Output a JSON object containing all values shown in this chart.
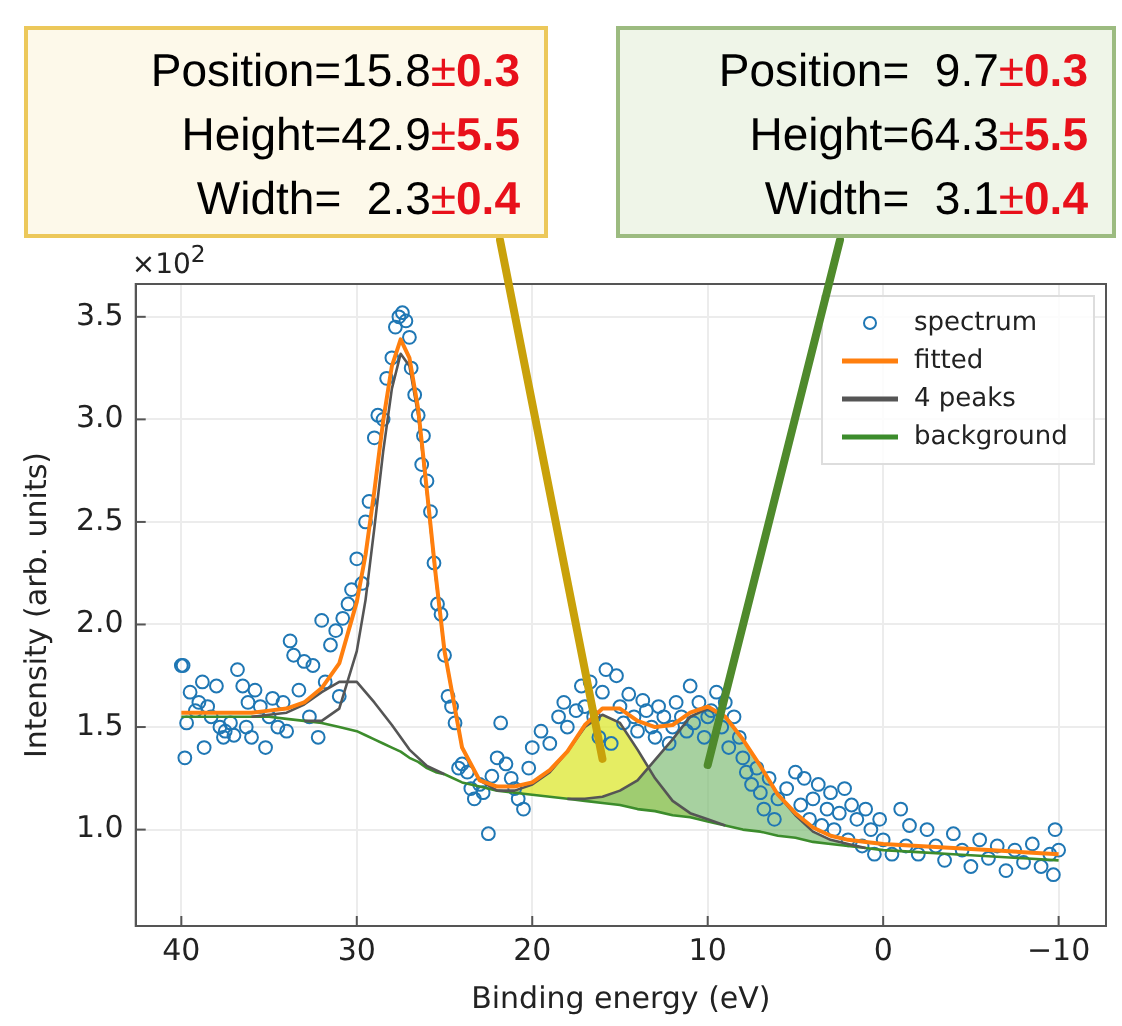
{
  "chart_data": {
    "type": "line",
    "xlabel": "Binding energy (eV)",
    "ylabel": "Intensity (arb. units)",
    "xlim": [
      42.6,
      -12.7
    ],
    "ylim": [
      0.53,
      3.66
    ],
    "xticks": [
      40,
      30,
      20,
      10,
      0,
      {
        "value": -10,
        "label": "−10"
      }
    ],
    "yticks": [
      {
        "value": 1,
        "label": "1.0"
      },
      {
        "value": 1.5,
        "label": "1.5"
      },
      {
        "value": 2,
        "label": "2.0"
      },
      {
        "value": 2.5,
        "label": "2.5"
      },
      {
        "value": 3,
        "label": "3.0"
      },
      {
        "value": 3.5,
        "label": "3.5"
      }
    ],
    "grid": true,
    "legend": "top right",
    "annotations": [
      "×10$^{2}$",
      "Position=15.8±0.3",
      "Height=42.9±5.5",
      "Width=  2.3±0.4",
      "Position=  9.7±0.3",
      "Height=64.3±5.5",
      "Width=  3.1±0.4"
    ],
    "series": [
      {
        "name": "spectrum",
        "type": "scatter",
        "marker": "circle",
        "color": "#1f77b4",
        "x": [
          40,
          39.9,
          39.8,
          39.7,
          39.5,
          39.2,
          39,
          38.8,
          38.7,
          38.5,
          38.3,
          38,
          37.8,
          37.6,
          37.5,
          37.2,
          37,
          36.8,
          36.5,
          36.3,
          36.2,
          36,
          35.8,
          35.5,
          35.2,
          35,
          34.8,
          34.5,
          34.2,
          34,
          33.8,
          33.6,
          33.3,
          33,
          32.7,
          32.5,
          32.2,
          32,
          31.8,
          31.5,
          31.2,
          31,
          30.8,
          30.5,
          30.3,
          30,
          29.7,
          29.5,
          29.3,
          29,
          28.8,
          28.5,
          28.3,
          28,
          27.8,
          27.6,
          27.4,
          27.2,
          27,
          26.9,
          26.7,
          26.5,
          26.3,
          26.2,
          26,
          25.8,
          25.6,
          25.4,
          25.2,
          25,
          24.8,
          24.6,
          24.4,
          24.2,
          24,
          23.7,
          23.5,
          23.3,
          23,
          22.8,
          22.5,
          22.3,
          22,
          21.8,
          21.5,
          21.2,
          21,
          20.8,
          20.5,
          20.2,
          20,
          19.5,
          19,
          18.5,
          18.2,
          18,
          17.5,
          17.2,
          17,
          16.7,
          16.5,
          16.2,
          16,
          15.8,
          15.5,
          15.2,
          15,
          14.8,
          14.5,
          14.2,
          14,
          13.7,
          13.5,
          13.2,
          13,
          12.8,
          12.5,
          12.2,
          12,
          11.8,
          11.5,
          11.2,
          11,
          10.8,
          10.5,
          10.2,
          10,
          9.8,
          9.5,
          9.2,
          9,
          8.8,
          8.5,
          8.2,
          8,
          7.8,
          7.5,
          7.2,
          7,
          6.8,
          6.5,
          6.2,
          6,
          5.5,
          5,
          4.7,
          4.5,
          4.2,
          4,
          3.7,
          3.5,
          3.2,
          3,
          2.8,
          2.5,
          2.2,
          2,
          1.8,
          1.5,
          1.2,
          1,
          0.7,
          0.5,
          0.2,
          0,
          -0.5,
          -1,
          -1.3,
          -1.5,
          -2,
          -2.5,
          -3,
          -3.5,
          -4,
          -4.5,
          -5,
          -5.5,
          -6,
          -6.5,
          -7,
          -7.5,
          -8,
          -8.5,
          -9,
          -9.5,
          -9.7,
          -9.8,
          -10
        ],
        "values": [
          1.8,
          1.8,
          1.35,
          1.52,
          1.67,
          1.58,
          1.62,
          1.72,
          1.4,
          1.6,
          1.55,
          1.7,
          1.5,
          1.45,
          1.48,
          1.52,
          1.46,
          1.78,
          1.7,
          1.5,
          1.62,
          1.45,
          1.68,
          1.6,
          1.4,
          1.55,
          1.64,
          1.5,
          1.62,
          1.48,
          1.92,
          1.85,
          1.68,
          1.82,
          1.55,
          1.8,
          1.45,
          2.02,
          1.72,
          1.9,
          1.97,
          1.65,
          2.03,
          2.1,
          2.17,
          2.32,
          2.2,
          2.5,
          2.6,
          2.91,
          3.02,
          3.0,
          3.2,
          3.3,
          3.45,
          3.5,
          3.52,
          3.48,
          3.4,
          3.25,
          3.12,
          3.02,
          2.78,
          2.92,
          2.7,
          2.55,
          2.3,
          2.1,
          2.05,
          1.85,
          1.65,
          1.6,
          1.52,
          1.3,
          1.32,
          1.28,
          1.2,
          1.15,
          1.22,
          1.18,
          0.98,
          1.26,
          1.35,
          1.52,
          1.32,
          1.25,
          1.2,
          1.15,
          1.1,
          1.3,
          1.4,
          1.48,
          1.42,
          1.55,
          1.62,
          1.5,
          1.58,
          1.7,
          1.6,
          1.72,
          1.55,
          1.45,
          1.67,
          1.78,
          1.42,
          1.75,
          1.6,
          1.52,
          1.66,
          1.55,
          1.48,
          1.63,
          1.58,
          1.5,
          1.45,
          1.6,
          1.55,
          1.42,
          1.5,
          1.62,
          1.55,
          1.48,
          1.7,
          1.52,
          1.62,
          1.45,
          1.55,
          1.58,
          1.67,
          1.5,
          1.62,
          1.4,
          1.55,
          1.45,
          1.35,
          1.28,
          1.22,
          1.3,
          1.18,
          1.1,
          1.25,
          1.05,
          1.15,
          1.2,
          1.28,
          1.12,
          1.25,
          1.05,
          1.15,
          1.22,
          1.02,
          1.1,
          1.18,
          1.0,
          1.08,
          1.2,
          0.95,
          1.12,
          1.05,
          0.92,
          1.1,
          1.0,
          0.88,
          1.05,
          0.95,
          0.88,
          1.1,
          0.92,
          1.02,
          0.88,
          1.0,
          0.92,
          0.85,
          0.98,
          0.9,
          0.82,
          0.95,
          0.86,
          0.92,
          0.8,
          0.9,
          0.84,
          0.93,
          0.82,
          0.88,
          0.78,
          1.0,
          0.9
        ]
      },
      {
        "name": "fitted",
        "type": "line",
        "color": "#ff7f0e",
        "x": [
          40,
          38,
          36,
          35,
          34,
          33,
          32,
          31,
          30,
          29.5,
          29,
          28.5,
          28,
          27.5,
          27,
          26.5,
          26,
          25.5,
          25,
          24,
          23,
          22,
          21,
          20,
          19,
          18,
          17,
          16,
          15,
          14,
          13,
          12,
          11,
          10,
          9,
          8,
          7,
          6,
          5,
          4,
          3,
          2,
          1,
          0,
          -2,
          -4,
          -6,
          -8,
          -10
        ],
        "values": [
          1.57,
          1.57,
          1.57,
          1.58,
          1.59,
          1.62,
          1.69,
          1.81,
          2.11,
          2.34,
          2.65,
          2.99,
          3.26,
          3.39,
          3.3,
          3.05,
          2.65,
          2.24,
          1.87,
          1.4,
          1.24,
          1.21,
          1.21,
          1.23,
          1.29,
          1.38,
          1.51,
          1.59,
          1.59,
          1.53,
          1.5,
          1.51,
          1.57,
          1.6,
          1.55,
          1.44,
          1.31,
          1.17,
          1.08,
          1.01,
          0.97,
          0.95,
          0.94,
          0.93,
          0.92,
          0.91,
          0.9,
          0.89,
          0.88
        ]
      },
      {
        "name": "4 peaks",
        "type": "line",
        "color": "#555555",
        "x": [
          33,
          32,
          31,
          30,
          29.5,
          29,
          28.5,
          28,
          27.5,
          27,
          26.5,
          26,
          25.5,
          25,
          24,
          23,
          22
        ],
        "values": [
          1.53,
          1.53,
          1.59,
          1.87,
          2.12,
          2.47,
          2.84,
          3.15,
          3.32,
          3.26,
          3.02,
          2.64,
          2.23,
          1.87,
          1.4,
          1.24,
          1.19
        ]
      },
      {
        "type": "line",
        "color": "#555555",
        "x": [
          36,
          35,
          34,
          33,
          32,
          31,
          30,
          29,
          28,
          27,
          26,
          25
        ],
        "values": [
          1.55,
          1.56,
          1.57,
          1.61,
          1.67,
          1.72,
          1.72,
          1.62,
          1.51,
          1.39,
          1.31,
          1.27
        ]
      },
      {
        "type": "line",
        "color": "#555555",
        "x": [
          22,
          21,
          20,
          19,
          18,
          17,
          16,
          15,
          14,
          13,
          12,
          11,
          10,
          9
        ],
        "values": [
          1.19,
          1.19,
          1.22,
          1.28,
          1.38,
          1.5,
          1.56,
          1.52,
          1.39,
          1.25,
          1.14,
          1.08,
          1.05,
          1.02
        ],
        "lower": [
          1.19,
          1.18,
          1.17,
          1.16,
          1.15,
          1.14,
          1.13,
          1.12,
          1.1,
          1.09,
          1.07,
          1.06,
          1.04,
          1.02
        ],
        "upper": [
          1.19,
          1.19,
          1.22,
          1.28,
          1.38,
          1.5,
          1.56,
          1.52,
          1.39,
          1.25,
          1.14,
          1.08,
          1.05,
          1.02
        ]
      },
      {
        "type": "line",
        "color": "#555555",
        "x": [
          18,
          17,
          16,
          15,
          14,
          13,
          12,
          11,
          10,
          9,
          8,
          7,
          6,
          5,
          4,
          3,
          2,
          1
        ],
        "values": [
          1.15,
          1.15,
          1.16,
          1.19,
          1.24,
          1.34,
          1.44,
          1.55,
          1.59,
          1.55,
          1.44,
          1.31,
          1.17,
          1.07,
          0.99,
          0.95,
          0.93,
          0.91
        ],
        "lower": [
          1.15,
          1.14,
          1.13,
          1.12,
          1.1,
          1.09,
          1.07,
          1.06,
          1.04,
          1.02,
          1.0,
          0.99,
          0.97,
          0.96,
          0.94,
          0.93,
          0.92,
          0.91
        ],
        "upper": [
          1.15,
          1.15,
          1.16,
          1.19,
          1.24,
          1.34,
          1.44,
          1.55,
          1.59,
          1.55,
          1.44,
          1.31,
          1.17,
          1.07,
          0.99,
          0.95,
          0.93,
          0.91
        ]
      },
      {
        "name": "background",
        "type": "line",
        "color": "#3c8c2c",
        "x": [
          40,
          38,
          36,
          35,
          34,
          33,
          32,
          31,
          30,
          29.5,
          29,
          28.5,
          28,
          27.5,
          27,
          26.5,
          26,
          25.5,
          25,
          24,
          23,
          22,
          21,
          20,
          19,
          18,
          17,
          16,
          15,
          14,
          13,
          12,
          11,
          10,
          9,
          8,
          7,
          6,
          5,
          4,
          3,
          2,
          1,
          0,
          -2,
          -4,
          -6,
          -8,
          -10
        ],
        "values": [
          1.55,
          1.55,
          1.55,
          1.55,
          1.54,
          1.53,
          1.52,
          1.5,
          1.48,
          1.46,
          1.44,
          1.42,
          1.4,
          1.38,
          1.35,
          1.33,
          1.3,
          1.28,
          1.27,
          1.23,
          1.21,
          1.19,
          1.18,
          1.17,
          1.16,
          1.15,
          1.14,
          1.13,
          1.12,
          1.1,
          1.09,
          1.07,
          1.06,
          1.04,
          1.02,
          1.0,
          0.99,
          0.97,
          0.96,
          0.94,
          0.93,
          0.92,
          0.91,
          0.9,
          0.89,
          0.88,
          0.87,
          0.86,
          0.85
        ]
      }
    ]
  }
}
